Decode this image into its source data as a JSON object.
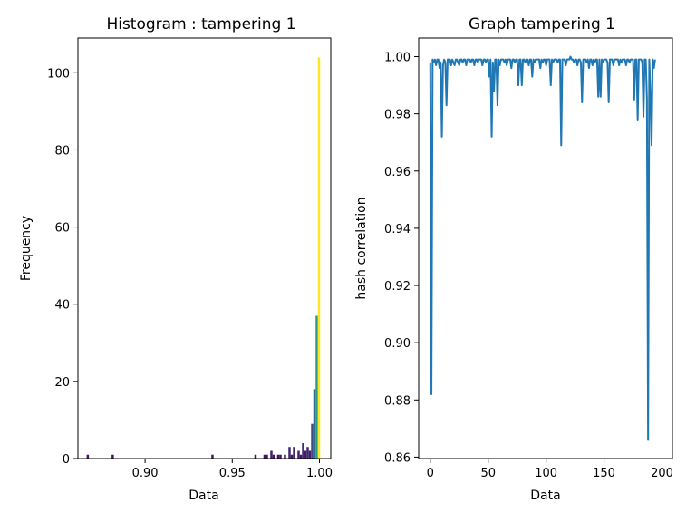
{
  "chart_data": [
    {
      "type": "bar",
      "title": "Histogram : tampering 1",
      "xlabel": "Data",
      "ylabel": "Frequency",
      "xlim": [
        0.8615,
        1.0065
      ],
      "ylim": [
        0,
        109
      ],
      "xticks": [
        0.9,
        0.95,
        1.0
      ],
      "xtick_labels": [
        "0.90",
        "0.95",
        "1.00"
      ],
      "yticks": [
        0,
        20,
        40,
        60,
        80,
        100
      ],
      "ytick_labels": [
        "0",
        "20",
        "40",
        "60",
        "80",
        "100"
      ],
      "grid": false,
      "colormap": "viridis",
      "bin_width": 0.0013,
      "bins": [
        {
          "x": 0.8665,
          "value": 1
        },
        {
          "x": 0.8808,
          "value": 1
        },
        {
          "x": 0.938,
          "value": 1
        },
        {
          "x": 0.9627,
          "value": 1
        },
        {
          "x": 0.9679,
          "value": 1
        },
        {
          "x": 0.9692,
          "value": 1
        },
        {
          "x": 0.9718,
          "value": 2
        },
        {
          "x": 0.9731,
          "value": 1
        },
        {
          "x": 0.9757,
          "value": 1
        },
        {
          "x": 0.977,
          "value": 1
        },
        {
          "x": 0.9796,
          "value": 1
        },
        {
          "x": 0.9822,
          "value": 3
        },
        {
          "x": 0.9835,
          "value": 1
        },
        {
          "x": 0.9848,
          "value": 3
        },
        {
          "x": 0.9874,
          "value": 2
        },
        {
          "x": 0.9887,
          "value": 1
        },
        {
          "x": 0.99,
          "value": 4
        },
        {
          "x": 0.9913,
          "value": 2
        },
        {
          "x": 0.9926,
          "value": 3
        },
        {
          "x": 0.9939,
          "value": 2
        },
        {
          "x": 0.9952,
          "value": 9
        },
        {
          "x": 0.9965,
          "value": 18
        },
        {
          "x": 0.9978,
          "value": 37
        },
        {
          "x": 0.9991,
          "value": 104
        }
      ]
    },
    {
      "type": "line",
      "title": "Graph tampering 1",
      "xlabel": "Data",
      "ylabel": "hash correlation",
      "xlim": [
        -10,
        209
      ],
      "ylim": [
        0.8595,
        1.0065
      ],
      "xticks": [
        0,
        50,
        100,
        150,
        200
      ],
      "xtick_labels": [
        "0",
        "50",
        "100",
        "150",
        "200"
      ],
      "yticks": [
        0.86,
        0.88,
        0.9,
        0.92,
        0.94,
        0.96,
        0.98,
        1.0
      ],
      "ytick_labels": [
        "0.86",
        "0.88",
        "0.90",
        "0.92",
        "0.94",
        "0.96",
        "0.98",
        "1.00"
      ],
      "grid": false,
      "color": "#1f77b4",
      "y": [
        0.998,
        0.882,
        0.999,
        0.998,
        0.999,
        0.997,
        0.999,
        0.999,
        0.996,
        0.998,
        0.972,
        0.997,
        0.999,
        0.998,
        0.983,
        0.999,
        0.999,
        0.999,
        0.997,
        0.999,
        0.998,
        0.997,
        0.999,
        0.999,
        0.998,
        0.997,
        0.999,
        0.999,
        0.998,
        0.999,
        0.999,
        0.997,
        0.999,
        0.999,
        0.999,
        0.998,
        0.999,
        0.999,
        0.997,
        0.999,
        0.999,
        0.998,
        0.999,
        0.999,
        0.999,
        0.997,
        0.999,
        0.999,
        0.998,
        0.999,
        0.999,
        0.993,
        0.999,
        0.972,
        0.998,
        0.988,
        0.999,
        0.999,
        0.983,
        0.999,
        0.997,
        0.999,
        0.999,
        0.999,
        0.998,
        0.999,
        0.997,
        0.999,
        0.999,
        0.999,
        0.996,
        0.999,
        0.999,
        0.998,
        0.999,
        0.999,
        0.99,
        0.999,
        0.999,
        0.99,
        0.999,
        0.999,
        0.998,
        0.999,
        0.999,
        0.997,
        0.999,
        0.999,
        0.993,
        0.999,
        0.998,
        0.999,
        0.999,
        0.999,
        0.999,
        0.996,
        0.999,
        0.998,
        0.999,
        0.999,
        0.997,
        0.999,
        0.999,
        0.999,
        0.99,
        0.999,
        0.998,
        0.999,
        0.999,
        0.999,
        0.998,
        0.999,
        0.999,
        0.969,
        0.999,
        0.999,
        0.999,
        0.997,
        0.999,
        0.999,
        0.999,
        1.0,
        0.999,
        0.999,
        0.998,
        0.999,
        0.999,
        0.997,
        0.999,
        0.999,
        0.998,
        0.984,
        0.999,
        0.999,
        0.999,
        0.998,
        0.999,
        0.996,
        0.999,
        0.999,
        0.997,
        0.999,
        0.998,
        0.999,
        0.999,
        0.986,
        0.999,
        0.986,
        0.999,
        0.998,
        0.999,
        0.999,
        0.999,
        0.998,
        0.984,
        0.999,
        0.999,
        0.999,
        0.997,
        0.999,
        0.999,
        0.999,
        0.999,
        0.997,
        0.999,
        0.998,
        0.999,
        0.999,
        0.999,
        0.997,
        0.999,
        0.999,
        0.998,
        0.999,
        0.999,
        0.999,
        0.985,
        0.999,
        0.999,
        0.978,
        0.999,
        0.999,
        0.999,
        0.998,
        0.979,
        0.999,
        0.999,
        0.985,
        0.866,
        0.999,
        0.988,
        0.969,
        0.999,
        0.996,
        0.999
      ]
    }
  ]
}
